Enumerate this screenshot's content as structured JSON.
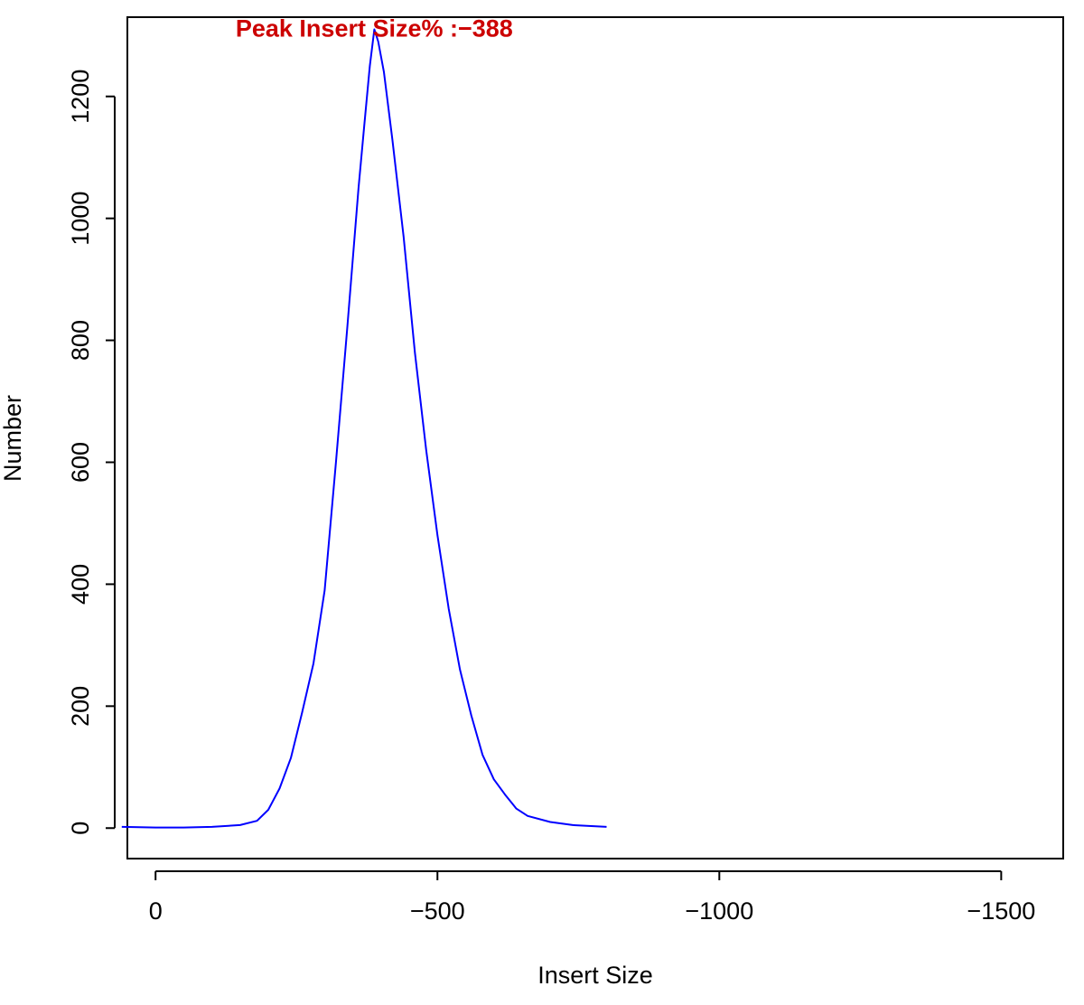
{
  "chart_data": {
    "type": "line",
    "title": "",
    "xlabel": "Insert Size",
    "ylabel": "Number",
    "xlim": [
      50,
      -1610
    ],
    "ylim": [
      -50,
      1330
    ],
    "xticks": [
      0,
      -500,
      -1000,
      -1500
    ],
    "xtick_labels": [
      "0",
      "−500",
      "−1000",
      "−1500"
    ],
    "yticks": [
      0,
      200,
      400,
      600,
      800,
      1000,
      1200
    ],
    "ytick_labels": [
      "0",
      "200",
      "400",
      "600",
      "800",
      "1000",
      "1200"
    ],
    "grid": false,
    "annotation": {
      "text": "Peak Insert Size% :−388",
      "x": -388,
      "y": 1310,
      "color": "#cc0000"
    },
    "series": [
      {
        "color": "#0000ff",
        "x": [
          60,
          0,
          -50,
          -100,
          -150,
          -180,
          -200,
          -220,
          -240,
          -260,
          -280,
          -300,
          -320,
          -340,
          -360,
          -370,
          -380,
          -388,
          -395,
          -405,
          -420,
          -440,
          -460,
          -480,
          -500,
          -520,
          -540,
          -560,
          -580,
          -600,
          -620,
          -640,
          -660,
          -700,
          -740,
          -800
        ],
        "y": [
          2,
          1,
          1,
          2,
          5,
          12,
          30,
          65,
          115,
          190,
          270,
          390,
          600,
          820,
          1050,
          1150,
          1250,
          1310,
          1290,
          1240,
          1130,
          970,
          780,
          620,
          480,
          360,
          260,
          185,
          120,
          80,
          55,
          32,
          20,
          10,
          5,
          2
        ]
      }
    ]
  }
}
